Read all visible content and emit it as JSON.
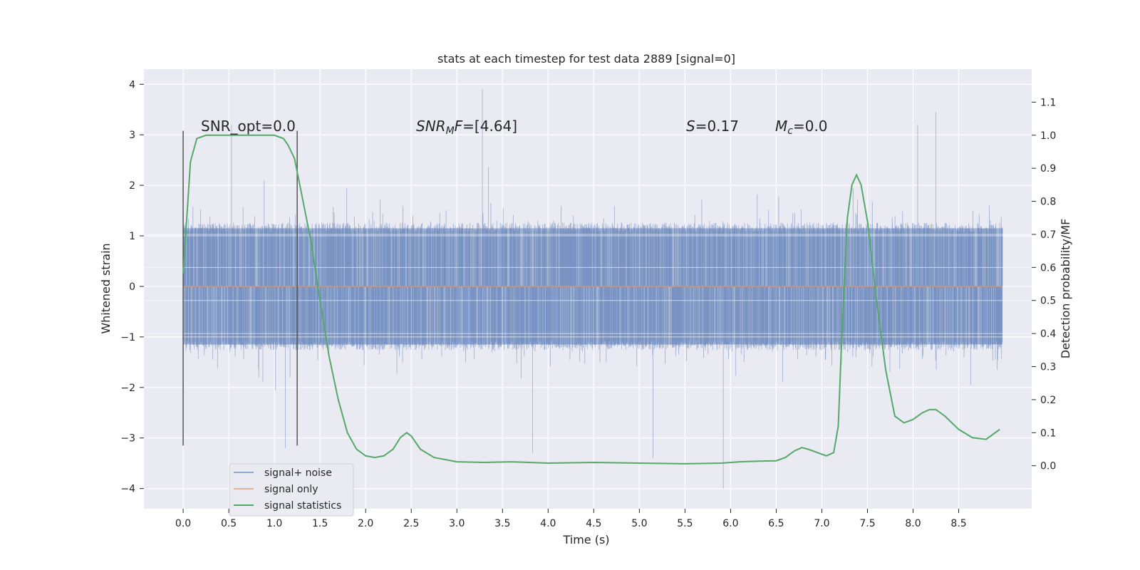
{
  "chart_data": {
    "type": "line",
    "title": "stats at each timestep for test data 2889 [signal=0]",
    "xlabel": "Time (s)",
    "ylabel_left": "Whitened strain",
    "ylabel_right": "Detection probability/MF",
    "xlim": [
      -0.43,
      9.3
    ],
    "ylim_left": [
      -4.4,
      4.3
    ],
    "ylim_right": [
      -0.13,
      1.2
    ],
    "x_ticks": [
      "0.0",
      "0.5",
      "1.0",
      "1.5",
      "2.0",
      "2.5",
      "3.0",
      "3.5",
      "4.0",
      "4.5",
      "5.0",
      "5.5",
      "6.0",
      "6.5",
      "7.0",
      "7.5",
      "8.0",
      "8.5"
    ],
    "y_left_ticks": [
      "4",
      "3",
      "2",
      "1",
      "0",
      "−1",
      "−2",
      "−3",
      "−4"
    ],
    "y_right_ticks": [
      "1.1",
      "1.0",
      "0.9",
      "0.8",
      "0.7",
      "0.6",
      "0.5",
      "0.4",
      "0.3",
      "0.2",
      "0.1",
      "0.0"
    ],
    "grid": true,
    "legend_position": "lower-left",
    "annotations": {
      "snr_opt": "SNR_opt=0.0",
      "snr_mf_prefix": "SNR",
      "snr_mf_sub": "M",
      "snr_mf_mid": "F",
      "snr_mf_value": "=[4.64]",
      "s_symbol": "S",
      "s_value": "=0.17",
      "mc_symbol": "M",
      "mc_sub": "c",
      "mc_value": "=0.0"
    },
    "vertical_markers": [
      0.0,
      1.25
    ],
    "series": [
      {
        "name": "signal+ noise",
        "color": "#4c72b0",
        "axis": "left",
        "style": "noise band; typical amplitude ±1.2, peaks up to 3.9, min −4.0",
        "x_range": [
          0.0,
          8.98
        ],
        "peaks": [
          [
            3.28,
            3.9
          ],
          [
            8.25,
            3.45
          ],
          [
            0.53,
            3.2
          ],
          [
            8.05,
            3.2
          ],
          [
            5.92,
            -4.0
          ],
          [
            5.15,
            -3.4
          ],
          [
            3.83,
            -3.3
          ],
          [
            1.12,
            -3.2
          ]
        ]
      },
      {
        "name": "signal only",
        "color": "#dd8452",
        "axis": "left",
        "x": [
          0.0,
          8.98
        ],
        "y": [
          0.0,
          0.0
        ]
      },
      {
        "name": "signal statistics",
        "color": "#55a868",
        "axis": "right",
        "x": [
          0.0,
          0.08,
          0.15,
          0.25,
          0.5,
          0.8,
          1.0,
          1.1,
          1.15,
          1.22,
          1.3,
          1.4,
          1.5,
          1.6,
          1.7,
          1.8,
          1.9,
          2.0,
          2.1,
          2.2,
          2.3,
          2.38,
          2.45,
          2.5,
          2.6,
          2.75,
          3.0,
          3.3,
          3.6,
          4.0,
          4.5,
          5.0,
          5.5,
          5.9,
          6.1,
          6.3,
          6.5,
          6.6,
          6.7,
          6.78,
          6.85,
          6.95,
          7.05,
          7.13,
          7.18,
          7.22,
          7.28,
          7.33,
          7.38,
          7.43,
          7.5,
          7.6,
          7.7,
          7.8,
          7.9,
          8.0,
          8.1,
          8.18,
          8.25,
          8.35,
          8.5,
          8.65,
          8.8,
          8.95
        ],
        "y": [
          0.58,
          0.92,
          0.99,
          1.0,
          1.0,
          1.0,
          1.0,
          0.99,
          0.97,
          0.93,
          0.82,
          0.68,
          0.5,
          0.33,
          0.2,
          0.1,
          0.05,
          0.03,
          0.025,
          0.03,
          0.05,
          0.085,
          0.1,
          0.09,
          0.05,
          0.025,
          0.012,
          0.01,
          0.012,
          0.008,
          0.01,
          0.008,
          0.006,
          0.008,
          0.012,
          0.014,
          0.015,
          0.025,
          0.045,
          0.055,
          0.05,
          0.04,
          0.03,
          0.04,
          0.12,
          0.4,
          0.75,
          0.85,
          0.88,
          0.85,
          0.74,
          0.5,
          0.29,
          0.15,
          0.13,
          0.14,
          0.16,
          0.17,
          0.17,
          0.15,
          0.11,
          0.085,
          0.08,
          0.11
        ]
      }
    ]
  },
  "colors": {
    "plot_bg": "#eaeaf2",
    "grid": "#ffffff",
    "noise": "#4c72b0",
    "signal": "#dd8452",
    "stat": "#55a868",
    "marker": "#555555"
  }
}
